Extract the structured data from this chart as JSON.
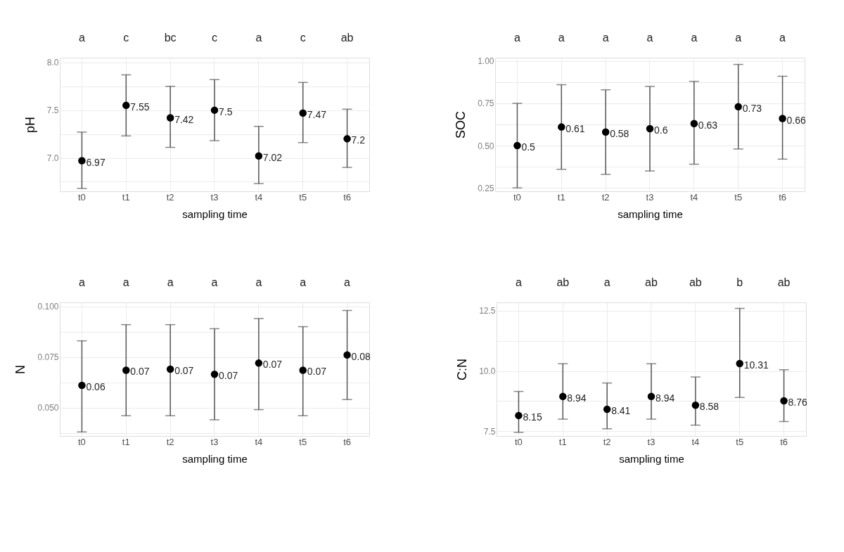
{
  "chart_data": [
    {
      "type": "scatter",
      "categories": [
        "t0",
        "t1",
        "t2",
        "t3",
        "t4",
        "t5",
        "t6"
      ],
      "xlabel": "sampling time",
      "ylabel": "pH",
      "series": [
        {
          "color": "#000000",
          "values": [
            6.97,
            7.55,
            7.42,
            7.5,
            7.02,
            7.47,
            7.2
          ],
          "errors": [
            [
              6.68,
              7.27
            ],
            [
              7.23,
              7.87
            ],
            [
              7.11,
              7.75
            ],
            [
              7.18,
              7.82
            ],
            [
              6.73,
              7.33
            ],
            [
              7.16,
              7.79
            ],
            [
              6.9,
              7.51
            ]
          ]
        }
      ],
      "ylim": [
        6.65,
        8.05
      ],
      "yticks": [
        {
          "value": 6.75,
          "label": null
        },
        {
          "value": 7.0,
          "label": "7.0"
        },
        {
          "value": 7.25,
          "label": null
        },
        {
          "value": 7.5,
          "label": "7.5"
        },
        {
          "value": 7.75,
          "label": null
        },
        {
          "value": 8.0,
          "label": "8.0"
        }
      ],
      "grid": true,
      "data_labels": true,
      "marker": "circle",
      "annotations": [
        "a",
        "c",
        "bc",
        "c",
        "a",
        "c",
        "ab"
      ]
    },
    {
      "type": "scatter",
      "categories": [
        "t0",
        "t1",
        "t2",
        "t3",
        "t4",
        "t5",
        "t6"
      ],
      "xlabel": "sampling time",
      "ylabel": "SOC",
      "series": [
        {
          "color": "#000000",
          "values": [
            0.5,
            0.61,
            0.58,
            0.6,
            0.63,
            0.73,
            0.66
          ],
          "errors": [
            [
              0.25,
              0.75
            ],
            [
              0.36,
              0.86
            ],
            [
              0.33,
              0.83
            ],
            [
              0.35,
              0.85
            ],
            [
              0.39,
              0.88
            ],
            [
              0.48,
              0.98
            ],
            [
              0.42,
              0.91
            ]
          ]
        }
      ],
      "ylim": [
        0.23,
        1.02
      ],
      "yticks": [
        {
          "value": 0.25,
          "label": "0.25"
        },
        {
          "value": 0.375,
          "label": null
        },
        {
          "value": 0.5,
          "label": "0.50"
        },
        {
          "value": 0.625,
          "label": null
        },
        {
          "value": 0.75,
          "label": "0.75"
        },
        {
          "value": 0.875,
          "label": null
        },
        {
          "value": 1.0,
          "label": "1.00"
        }
      ],
      "grid": true,
      "data_labels": true,
      "marker": "circle",
      "annotations": [
        "a",
        "a",
        "a",
        "a",
        "a",
        "a",
        "a"
      ]
    },
    {
      "type": "scatter",
      "categories": [
        "t0",
        "t1",
        "t2",
        "t3",
        "t4",
        "t5",
        "t6"
      ],
      "xlabel": "sampling time",
      "ylabel": "N",
      "series": [
        {
          "color": "#000000",
          "values": [
            0.061,
            0.0685,
            0.069,
            0.0665,
            0.072,
            0.0685,
            0.076
          ],
          "value_labels": [
            "0.06",
            "0.07",
            "0.07",
            "0.07",
            "0.07",
            "0.07",
            "0.08"
          ],
          "errors": [
            [
              0.038,
              0.083
            ],
            [
              0.046,
              0.091
            ],
            [
              0.046,
              0.091
            ],
            [
              0.044,
              0.089
            ],
            [
              0.049,
              0.094
            ],
            [
              0.046,
              0.09
            ],
            [
              0.054,
              0.098
            ]
          ]
        }
      ],
      "ylim": [
        0.036,
        0.102
      ],
      "yticks": [
        {
          "value": 0.0375,
          "label": null
        },
        {
          "value": 0.05,
          "label": "0.050"
        },
        {
          "value": 0.0625,
          "label": null
        },
        {
          "value": 0.075,
          "label": "0.075"
        },
        {
          "value": 0.0875,
          "label": null
        },
        {
          "value": 0.1,
          "label": "0.100"
        }
      ],
      "grid": true,
      "marker": "circle",
      "annotations": [
        "a",
        "a",
        "a",
        "a",
        "a",
        "a",
        "a"
      ]
    },
    {
      "type": "scatter",
      "categories": [
        "t0",
        "t1",
        "t2",
        "t3",
        "t4",
        "t5",
        "t6"
      ],
      "xlabel": "sampling time",
      "ylabel": "C:N",
      "series": [
        {
          "color": "#000000",
          "values": [
            8.15,
            8.94,
            8.41,
            8.94,
            8.58,
            10.31,
            8.76
          ],
          "errors": [
            [
              7.45,
              9.15
            ],
            [
              8.0,
              10.3
            ],
            [
              7.6,
              9.5
            ],
            [
              8.0,
              10.3
            ],
            [
              7.75,
              9.75
            ],
            [
              8.9,
              12.6
            ],
            [
              7.9,
              10.05
            ]
          ]
        }
      ],
      "ylim": [
        7.3,
        12.85
      ],
      "yticks": [
        {
          "value": 7.5,
          "label": "7.5"
        },
        {
          "value": 8.75,
          "label": null
        },
        {
          "value": 10.0,
          "label": "10.0"
        },
        {
          "value": 11.25,
          "label": null
        },
        {
          "value": 12.5,
          "label": "12.5"
        }
      ],
      "grid": true,
      "data_labels": true,
      "marker": "circle",
      "annotations": [
        "a",
        "ab",
        "a",
        "ab",
        "ab",
        "b",
        "ab"
      ]
    }
  ]
}
